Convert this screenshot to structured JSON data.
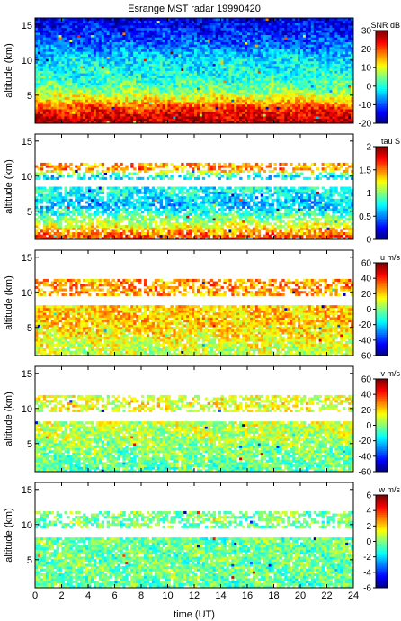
{
  "title": "Esrange MST radar 19990420",
  "chart_data": {
    "type": "heatmap",
    "title": "Esrange MST radar 19990420",
    "xlabel": "time (UT)",
    "xlim": [
      0,
      24
    ],
    "xticks": [
      0,
      2,
      4,
      6,
      8,
      10,
      12,
      14,
      16,
      18,
      20,
      22,
      24
    ],
    "colormap": "jet",
    "panels": [
      {
        "name": "snr",
        "ylabel": "altitude (km)",
        "ylim": [
          1,
          16
        ],
        "yticks": [
          5,
          10,
          15
        ],
        "colorbar_label": "SNR dB",
        "clim": [
          -20,
          30
        ],
        "colorbar_ticks": [
          30,
          20,
          10,
          0,
          -10,
          -20
        ],
        "profile": [
          {
            "alt": 1.5,
            "value": 27
          },
          {
            "alt": 3,
            "value": 22
          },
          {
            "alt": 4.5,
            "value": 12
          },
          {
            "alt": 6,
            "value": 4
          },
          {
            "alt": 8,
            "value": 0
          },
          {
            "alt": 10,
            "value": -2
          },
          {
            "alt": 12,
            "value": -8
          },
          {
            "alt": 14,
            "value": -12
          },
          {
            "alt": 16,
            "value": -15
          }
        ],
        "coverage": [
          {
            "alt_min": 1,
            "alt_max": 16,
            "fill": 1.0
          }
        ]
      },
      {
        "name": "tau",
        "ylabel": "altitude (km)",
        "ylim": [
          1,
          16
        ],
        "yticks": [
          5,
          10,
          15
        ],
        "colorbar_label": "tau S",
        "clim": [
          0,
          2
        ],
        "colorbar_ticks": [
          2,
          1.5,
          1,
          0.5,
          0
        ],
        "profile": [
          {
            "alt": 1.5,
            "value": 1.6
          },
          {
            "alt": 3.5,
            "value": 1.1
          },
          {
            "alt": 6,
            "value": 0.6
          },
          {
            "alt": 8,
            "value": 0.8
          },
          {
            "alt": 10,
            "value": 0.7
          },
          {
            "alt": 11,
            "value": 1.5
          },
          {
            "alt": 12,
            "value": 1.4
          }
        ],
        "coverage": [
          {
            "alt_min": 1,
            "alt_max": 8.5,
            "fill": 0.8
          },
          {
            "alt_min": 9.5,
            "alt_max": 12,
            "fill": 0.55
          }
        ]
      },
      {
        "name": "u",
        "ylabel": "altitude (km)",
        "ylim": [
          1,
          16
        ],
        "yticks": [
          5,
          10,
          15
        ],
        "colorbar_label": "u m/s",
        "clim": [
          -60,
          60
        ],
        "colorbar_ticks": [
          60,
          40,
          20,
          0,
          -20,
          -40,
          -60
        ],
        "profile": [
          {
            "alt": 1.5,
            "value": 8
          },
          {
            "alt": 4,
            "value": 16
          },
          {
            "alt": 6,
            "value": 22
          },
          {
            "alt": 8,
            "value": 20
          },
          {
            "alt": 10,
            "value": 26
          },
          {
            "alt": 11,
            "value": 30
          },
          {
            "alt": 12,
            "value": 25
          }
        ],
        "coverage": [
          {
            "alt_min": 1,
            "alt_max": 8,
            "fill": 0.9
          },
          {
            "alt_min": 9.5,
            "alt_max": 12,
            "fill": 0.6
          }
        ]
      },
      {
        "name": "v",
        "ylabel": "altitude (km)",
        "ylim": [
          1,
          16
        ],
        "yticks": [
          5,
          10,
          15
        ],
        "colorbar_label": "v m/s",
        "clim": [
          -60,
          60
        ],
        "colorbar_ticks": [
          60,
          40,
          20,
          0,
          -20,
          -40,
          -60
        ],
        "profile": [
          {
            "alt": 1.5,
            "value": -4
          },
          {
            "alt": 4,
            "value": 0
          },
          {
            "alt": 6,
            "value": 6
          },
          {
            "alt": 8,
            "value": 8
          },
          {
            "alt": 10,
            "value": 12
          },
          {
            "alt": 11,
            "value": 14
          },
          {
            "alt": 12,
            "value": 10
          }
        ],
        "coverage": [
          {
            "alt_min": 1,
            "alt_max": 8,
            "fill": 0.9
          },
          {
            "alt_min": 9.5,
            "alt_max": 12,
            "fill": 0.55
          }
        ]
      },
      {
        "name": "w",
        "ylabel": "altitude (km)",
        "ylim": [
          1,
          16
        ],
        "yticks": [
          5,
          10,
          15
        ],
        "colorbar_label": "w m/s",
        "clim": [
          -6,
          6
        ],
        "colorbar_ticks": [
          6,
          4,
          2,
          0,
          -2,
          -4,
          -6
        ],
        "profile": [
          {
            "alt": 1.5,
            "value": -0.4
          },
          {
            "alt": 4,
            "value": -0.2
          },
          {
            "alt": 8,
            "value": -0.3
          },
          {
            "alt": 11,
            "value": -0.1
          }
        ],
        "coverage": [
          {
            "alt_min": 1,
            "alt_max": 8,
            "fill": 0.9
          },
          {
            "alt_min": 9.5,
            "alt_max": 12,
            "fill": 0.55
          }
        ]
      }
    ]
  }
}
